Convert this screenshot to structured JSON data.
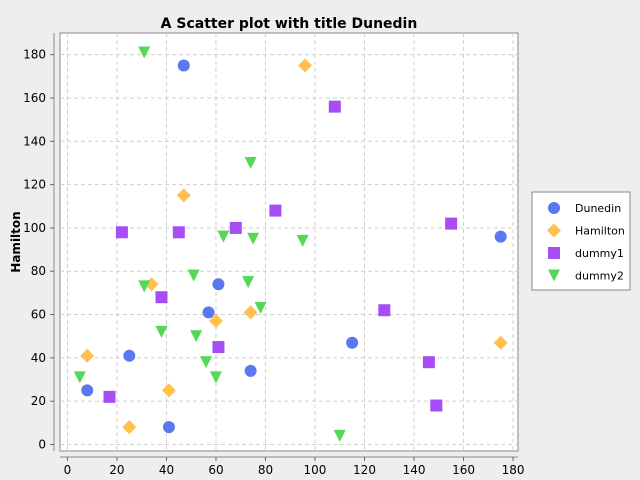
{
  "chart_data": {
    "type": "scatter",
    "title": "A Scatter plot with title Dunedin",
    "xlabel": "",
    "ylabel": "Hamilton",
    "xlim": [
      -3,
      182
    ],
    "ylim": [
      -3,
      190
    ],
    "xticks": [
      0,
      20,
      40,
      60,
      80,
      100,
      120,
      140,
      160,
      180
    ],
    "yticks": [
      0,
      20,
      40,
      60,
      80,
      100,
      120,
      140,
      160,
      180
    ],
    "grid": true,
    "legend_position": "right",
    "series": [
      {
        "name": "Dunedin",
        "marker": "circle",
        "color": "#5a78f0",
        "points": [
          [
            47,
            175
          ],
          [
            175,
            96
          ],
          [
            61,
            74
          ],
          [
            57,
            61
          ],
          [
            115,
            47
          ],
          [
            25,
            41
          ],
          [
            74,
            34
          ],
          [
            8,
            25
          ],
          [
            41,
            8
          ]
        ]
      },
      {
        "name": "Hamilton",
        "marker": "diamond",
        "color": "#ffc04d",
        "points": [
          [
            96,
            175
          ],
          [
            47,
            115
          ],
          [
            34,
            74
          ],
          [
            60,
            57
          ],
          [
            74,
            61
          ],
          [
            8,
            41
          ],
          [
            175,
            47
          ],
          [
            41,
            25
          ],
          [
            25,
            8
          ]
        ]
      },
      {
        "name": "dummy1",
        "marker": "square",
        "color": "#a64df5",
        "points": [
          [
            108,
            156
          ],
          [
            84,
            108
          ],
          [
            68,
            100
          ],
          [
            22,
            98
          ],
          [
            45,
            98
          ],
          [
            155,
            102
          ],
          [
            38,
            68
          ],
          [
            128,
            62
          ],
          [
            61,
            45
          ],
          [
            146,
            38
          ],
          [
            17,
            22
          ],
          [
            149,
            18
          ]
        ]
      },
      {
        "name": "dummy2",
        "marker": "triangle-down",
        "color": "#55d855",
        "points": [
          [
            31,
            181
          ],
          [
            74,
            130
          ],
          [
            63,
            96
          ],
          [
            75,
            95
          ],
          [
            95,
            94
          ],
          [
            51,
            78
          ],
          [
            73,
            75
          ],
          [
            31,
            73
          ],
          [
            78,
            63
          ],
          [
            38,
            52
          ],
          [
            52,
            50
          ],
          [
            56,
            38
          ],
          [
            5,
            31
          ],
          [
            60,
            31
          ],
          [
            110,
            4
          ]
        ]
      }
    ]
  }
}
